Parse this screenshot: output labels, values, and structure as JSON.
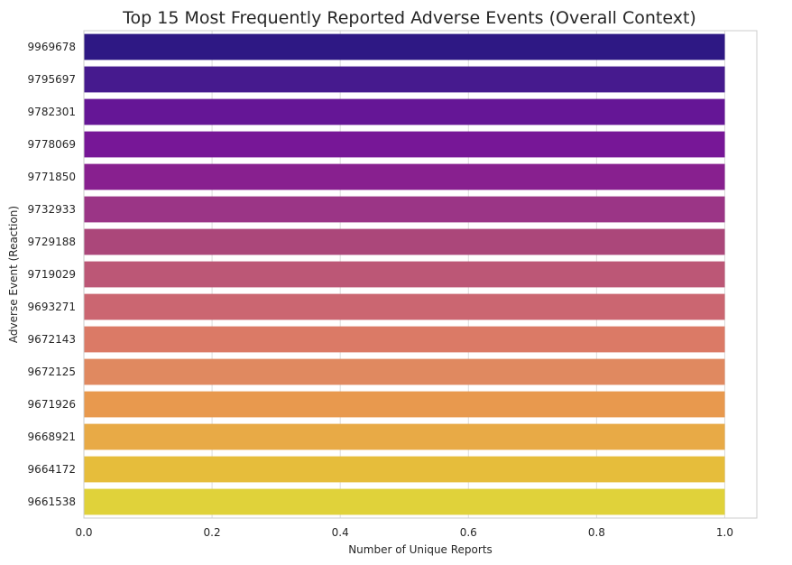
{
  "chart_data": {
    "type": "bar",
    "orientation": "horizontal",
    "title": "Top 15 Most Frequently Reported Adverse Events (Overall Context)",
    "xlabel": "Number of Unique Reports",
    "ylabel": "Adverse Event (Reaction)",
    "categories": [
      "9969678",
      "9795697",
      "9782301",
      "9778069",
      "9771850",
      "9732933",
      "9729188",
      "9719029",
      "9693271",
      "9672143",
      "9672125",
      "9671926",
      "9668921",
      "9664172",
      "9661538"
    ],
    "values": [
      1,
      1,
      1,
      1,
      1,
      1,
      1,
      1,
      1,
      1,
      1,
      1,
      1,
      1,
      1
    ],
    "colors": [
      "#2e1884",
      "#461a8e",
      "#651696",
      "#771797",
      "#88208f",
      "#9b3586",
      "#ab477a",
      "#bc5776",
      "#cb6671",
      "#db7a66",
      "#e08960",
      "#e8994e",
      "#e8aa46",
      "#e6bd3b",
      "#e0d23a"
    ],
    "xlim": [
      0,
      1.05
    ],
    "xticks": [
      "0.0",
      "0.2",
      "0.4",
      "0.6",
      "0.8",
      "1.0"
    ],
    "xtick_values": [
      0,
      0.2,
      0.4,
      0.6,
      0.8,
      1.0
    ],
    "grid": true,
    "legend": "none"
  }
}
